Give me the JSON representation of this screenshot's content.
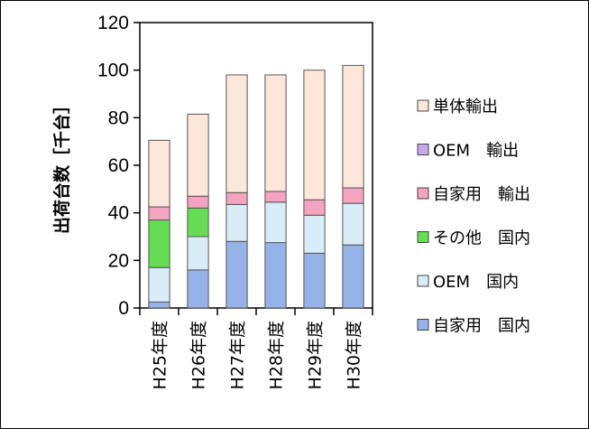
{
  "chart_data": {
    "type": "bar",
    "stacked": true,
    "ylabel": "出荷台数［千台］",
    "ylim": [
      0,
      120
    ],
    "yticks": [
      "0",
      "20",
      "40",
      "60",
      "80",
      "100",
      "120"
    ],
    "categories": [
      "H25年度",
      "H26年度",
      "H27年度",
      "H28年度",
      "H29年度",
      "H30年度"
    ],
    "series": [
      {
        "name": "自家用　国内",
        "color": "#95b3e8",
        "values": [
          2.5,
          16,
          28,
          27.5,
          23,
          26.5
        ]
      },
      {
        "name": "OEM　国内",
        "color": "#d9edf8",
        "values": [
          14.5,
          14,
          15.5,
          17,
          16,
          17.5
        ]
      },
      {
        "name": "その他　国内",
        "color": "#66dd55",
        "values": [
          20,
          12,
          0,
          0,
          0,
          0
        ]
      },
      {
        "name": "自家用　輸出",
        "color": "#f4a3c0",
        "values": [
          5.5,
          5,
          5,
          4.5,
          6.5,
          6.5
        ]
      },
      {
        "name": "OEM　輸出",
        "color": "#c7a8ec",
        "values": [
          0,
          0,
          0,
          0,
          0,
          0
        ]
      },
      {
        "name": "単体輸出",
        "color": "#fde7da",
        "values": [
          28,
          34.5,
          49.5,
          49,
          54.5,
          51.5
        ]
      }
    ],
    "grid": false,
    "legend": "right"
  }
}
